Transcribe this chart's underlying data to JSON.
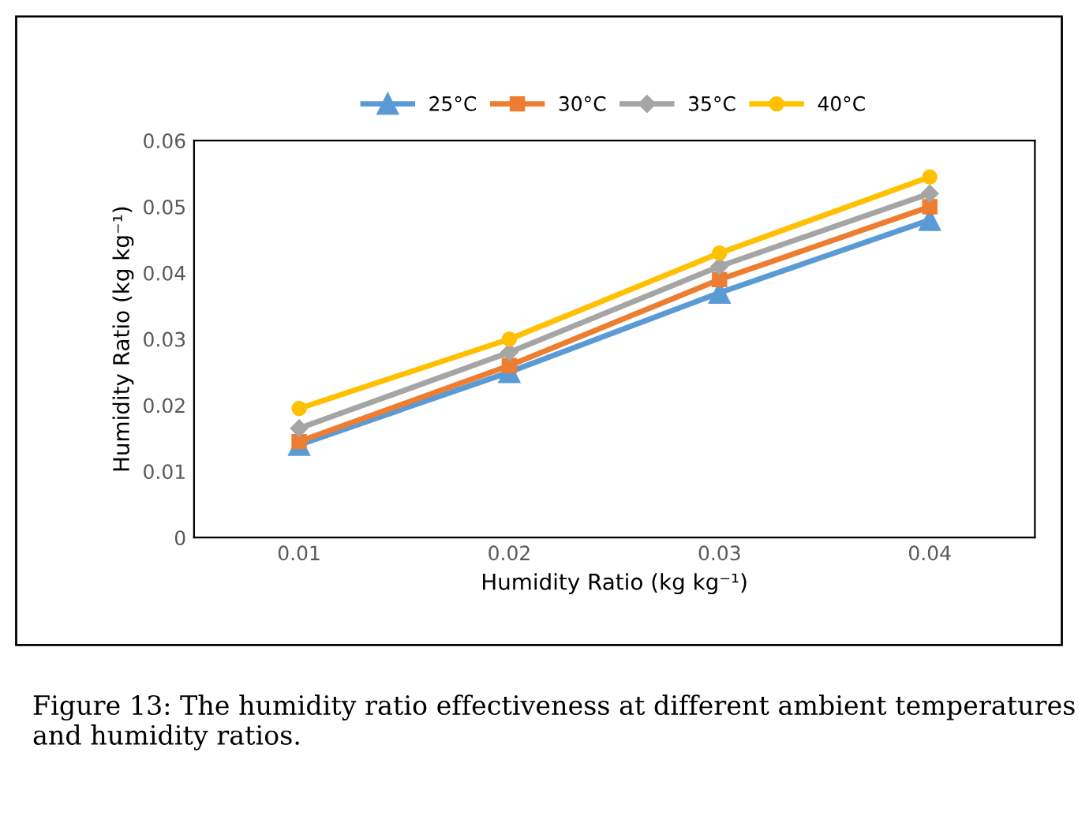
{
  "chart_data": {
    "type": "line",
    "xlabel": "Humidity Ratio (kg kg⁻¹)",
    "ylabel": "Humidity Ratio (kg kg⁻¹)",
    "categories": [
      "0.01",
      "0.02",
      "0.03",
      "0.04"
    ],
    "series": [
      {
        "name": "25°C",
        "color": "#5b9bd5",
        "marker": "triangle",
        "values": [
          0.014,
          0.025,
          0.037,
          0.048
        ]
      },
      {
        "name": "30°C",
        "color": "#ed7d31",
        "marker": "square",
        "values": [
          0.0145,
          0.026,
          0.039,
          0.05
        ]
      },
      {
        "name": "35°C",
        "color": "#a5a5a5",
        "marker": "diamond",
        "values": [
          0.0165,
          0.028,
          0.041,
          0.052
        ]
      },
      {
        "name": "40°C",
        "color": "#ffc000",
        "marker": "circle",
        "values": [
          0.0195,
          0.03,
          0.043,
          0.0545
        ]
      }
    ],
    "ylim": [
      0,
      0.06
    ],
    "yticks": [
      0,
      0.01,
      0.02,
      0.03,
      0.04,
      0.05,
      0.06
    ],
    "grid": false,
    "legend": "top",
    "annotations": [
      "Figure 13: The humidity ratio effectiveness at different ambient temperatures and humidity ratios."
    ]
  }
}
